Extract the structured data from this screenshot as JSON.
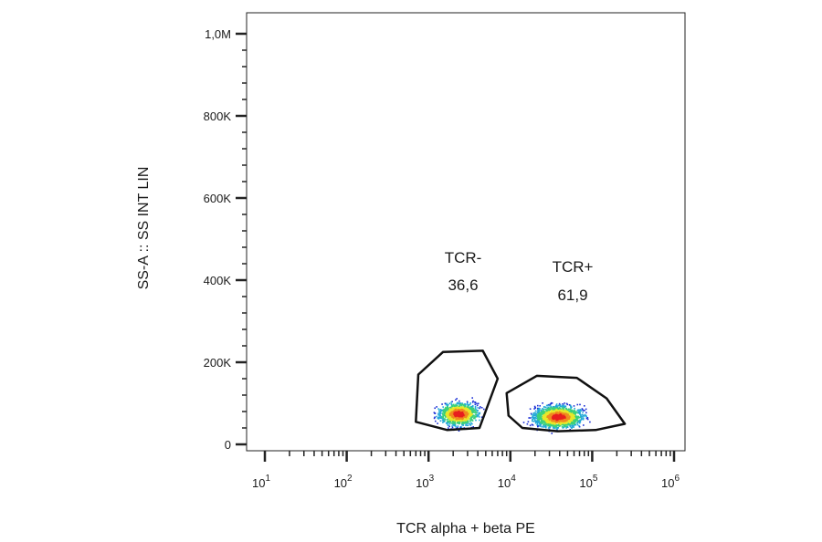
{
  "chart_data": {
    "type": "scatter",
    "title": "",
    "xlabel": "TCR alpha + beta PE",
    "ylabel": "SS-A :: SS INT LIN",
    "xscale": "log",
    "xlim": [
      10,
      1000000
    ],
    "ylim": [
      0,
      1000000
    ],
    "grid": false,
    "x_ticks": [
      {
        "base": "10",
        "exp": "1",
        "value": 10
      },
      {
        "base": "10",
        "exp": "2",
        "value": 100
      },
      {
        "base": "10",
        "exp": "3",
        "value": 1000
      },
      {
        "base": "10",
        "exp": "4",
        "value": 10000
      },
      {
        "base": "10",
        "exp": "5",
        "value": 100000
      },
      {
        "base": "10",
        "exp": "6",
        "value": 1000000
      }
    ],
    "y_ticks": [
      {
        "label": "0",
        "value": 0
      },
      {
        "label": "200K",
        "value": 200000
      },
      {
        "label": "400K",
        "value": 400000
      },
      {
        "label": "600K",
        "value": 600000
      },
      {
        "label": "800K",
        "value": 800000
      },
      {
        "label": "1,0M",
        "value": 1000000
      }
    ],
    "density_colors": [
      "#1a2fd6",
      "#22a8d8",
      "#3ad07a",
      "#e8e82a",
      "#f08a1e",
      "#e81e1e"
    ],
    "populations": [
      {
        "name": "TCR-",
        "percent": "36,6",
        "center": [
          2300,
          75000
        ],
        "gate": [
          [
            750,
            170000
          ],
          [
            1500,
            225000
          ],
          [
            4600,
            228000
          ],
          [
            7000,
            160000
          ],
          [
            4200,
            40000
          ],
          [
            1700,
            35000
          ],
          [
            700,
            55000
          ]
        ]
      },
      {
        "name": "TCR+",
        "percent": "61,9",
        "center": [
          38000,
          68000
        ],
        "gate": [
          [
            9000,
            125000
          ],
          [
            21000,
            167000
          ],
          [
            65000,
            162000
          ],
          [
            150000,
            112000
          ],
          [
            250000,
            50000
          ],
          [
            110000,
            35000
          ],
          [
            38000,
            32000
          ],
          [
            14000,
            40000
          ],
          [
            9500,
            70000
          ]
        ]
      }
    ]
  }
}
